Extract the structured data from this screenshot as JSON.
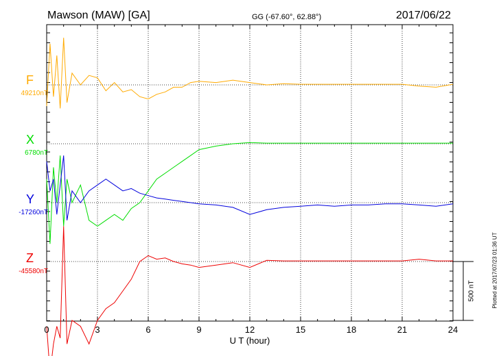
{
  "header": {
    "station": "Mawson (MAW)  [GA]",
    "coords": "GG (-67.60°,  62.88°)",
    "date": "2017/06/22"
  },
  "footer": {
    "xlabel": "U T (hour)",
    "plotted_note": "Plotted at 2017/07/23 01:36 UT",
    "scale_label": "500 nT"
  },
  "colors": {
    "F": "#ffaa00",
    "X": "#00dd00",
    "Y": "#0000dd",
    "Z": "#ee0000"
  },
  "chart_data": {
    "type": "line",
    "title": "Mawson (MAW)  [GA]",
    "xlabel": "U T (hour)",
    "xlim": [
      0,
      24
    ],
    "x_ticks": [
      0,
      3,
      6,
      9,
      12,
      15,
      18,
      21,
      24
    ],
    "x_tick_labels": [
      "0",
      "3",
      "6",
      "9",
      "12",
      "15",
      "18",
      "21",
      "24"
    ],
    "grid": "vertical dotted every 3 hours; dotted baseline per component",
    "scale_bar_nT": 500,
    "series": [
      {
        "name": "F",
        "baseline_label": "49210nT",
        "color": "#ffaa00",
        "x": [
          0.0,
          0.2,
          0.4,
          0.6,
          0.8,
          1.0,
          1.2,
          1.5,
          2.0,
          2.5,
          3.0,
          3.5,
          4.0,
          4.5,
          5.0,
          5.5,
          6.0,
          6.5,
          7.0,
          7.5,
          8.0,
          8.5,
          9.0,
          10.0,
          11.0,
          12.0,
          13.0,
          14.0,
          15.0,
          16.0,
          17.0,
          18.0,
          19.0,
          20.0,
          21.0,
          22.0,
          23.0,
          24.0
        ],
        "y": [
          -180,
          350,
          -100,
          250,
          -200,
          400,
          -150,
          100,
          0,
          80,
          60,
          -50,
          20,
          -60,
          -40,
          -100,
          -120,
          -80,
          -60,
          -20,
          -20,
          20,
          30,
          20,
          40,
          20,
          0,
          10,
          5,
          5,
          5,
          5,
          5,
          5,
          5,
          -10,
          -20,
          5
        ]
      },
      {
        "name": "X",
        "baseline_label": "6780nT",
        "color": "#00dd00",
        "x": [
          0.0,
          0.2,
          0.4,
          0.6,
          0.8,
          1.0,
          1.2,
          1.5,
          2.0,
          2.5,
          3.0,
          3.5,
          4.0,
          4.5,
          5.0,
          5.5,
          6.0,
          6.5,
          7.0,
          7.5,
          8.0,
          8.5,
          9.0,
          10.0,
          11.0,
          12.0,
          13.0,
          14.0,
          15.0,
          16.0,
          17.0,
          18.0,
          19.0,
          20.0,
          21.0,
          22.0,
          23.0,
          24.0
        ],
        "y": [
          -300,
          -850,
          -200,
          -500,
          -100,
          -700,
          -300,
          -500,
          -350,
          -650,
          -700,
          -650,
          -600,
          -650,
          -550,
          -500,
          -400,
          -300,
          -250,
          -200,
          -150,
          -100,
          -50,
          -20,
          0,
          10,
          5,
          5,
          5,
          5,
          5,
          5,
          5,
          5,
          5,
          5,
          5,
          5
        ]
      },
      {
        "name": "Y",
        "baseline_label": "-17260nT",
        "color": "#0000dd",
        "x": [
          0.0,
          0.2,
          0.4,
          0.6,
          0.8,
          1.0,
          1.2,
          1.5,
          2.0,
          2.5,
          3.0,
          3.5,
          4.0,
          4.5,
          5.0,
          5.5,
          6.0,
          6.5,
          7.0,
          7.5,
          8.0,
          8.5,
          9.0,
          10.0,
          11.0,
          12.0,
          13.0,
          14.0,
          15.0,
          16.0,
          17.0,
          18.0,
          19.0,
          20.0,
          21.0,
          22.0,
          23.0,
          24.0
        ],
        "y": [
          350,
          100,
          200,
          -100,
          150,
          400,
          -150,
          100,
          0,
          100,
          150,
          200,
          150,
          100,
          120,
          80,
          60,
          40,
          30,
          20,
          10,
          0,
          -10,
          -20,
          -40,
          -100,
          -60,
          -40,
          -30,
          -20,
          -30,
          -20,
          -20,
          -10,
          -10,
          -20,
          -30,
          -10
        ]
      },
      {
        "name": "Z",
        "baseline_label": "-45580nT",
        "color": "#ee0000",
        "x": [
          0.0,
          0.2,
          0.4,
          0.6,
          0.8,
          1.0,
          1.2,
          1.5,
          2.0,
          2.5,
          3.0,
          3.5,
          4.0,
          4.5,
          5.0,
          5.5,
          6.0,
          6.5,
          7.0,
          7.5,
          8.0,
          8.5,
          9.0,
          10.0,
          11.0,
          12.0,
          13.0,
          14.0,
          15.0,
          16.0,
          17.0,
          18.0,
          19.0,
          20.0,
          21.0,
          22.0,
          23.0,
          24.0
        ],
        "y": [
          -550,
          -950,
          -700,
          -550,
          -650,
          300,
          -700,
          -500,
          -550,
          -700,
          -500,
          -400,
          -350,
          -250,
          -150,
          0,
          50,
          20,
          30,
          0,
          -20,
          -30,
          -50,
          -30,
          -10,
          -50,
          10,
          5,
          5,
          5,
          5,
          5,
          5,
          5,
          5,
          20,
          5,
          5
        ]
      }
    ]
  }
}
